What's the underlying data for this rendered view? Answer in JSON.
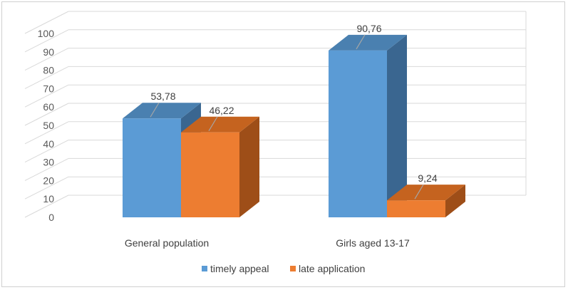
{
  "chart_data": {
    "type": "bar",
    "style": "3d-clustered-column",
    "title": "",
    "xlabel": "",
    "ylabel": "",
    "ylim": [
      0,
      100
    ],
    "yticks": [
      "0",
      "10",
      "20",
      "30",
      "40",
      "50",
      "60",
      "70",
      "80",
      "90",
      "100"
    ],
    "categories": [
      "General population",
      "Girls aged 13-17"
    ],
    "series": [
      {
        "name": "timely appeal",
        "values": [
          53.78,
          90.76
        ],
        "labels": [
          "53,78",
          "90,76"
        ],
        "color": "#5b9bd5",
        "top_color": "#4a80b0",
        "side_color": "#3a6690"
      },
      {
        "name": "late application",
        "values": [
          46.22,
          9.24
        ],
        "labels": [
          "46,22",
          "9,24"
        ],
        "color": "#ed7d31",
        "top_color": "#c5631f",
        "side_color": "#9e4e18"
      }
    ],
    "legend": "bottom",
    "grid": true
  }
}
